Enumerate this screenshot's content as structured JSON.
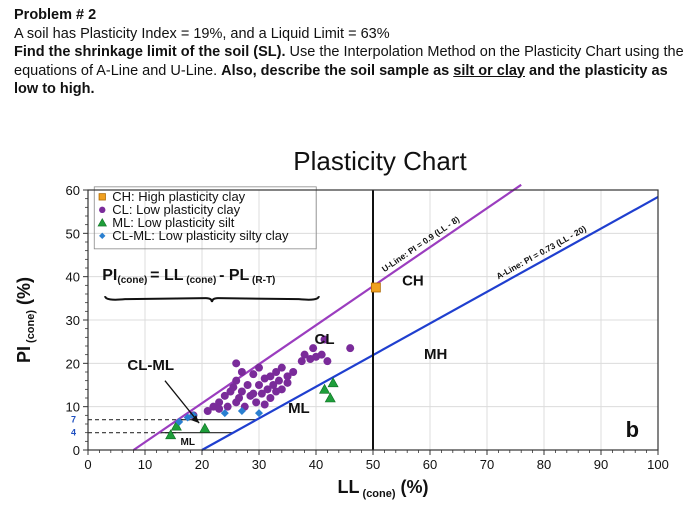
{
  "problem": {
    "title": "Problem # 2",
    "line1": "A soil has Plasticity Index = 19%, and a Liquid Limit = 63%",
    "find_bold": "Find the shrinkage limit of the soil (SL).",
    "find_rest": " Use the Interpolation Method on the Plasticity Chart using the equations of A-Line and U-Line. ",
    "also_bold": "Also, describe the soil sample as ",
    "underlined": "silt or clay",
    "and_bold": " and the plasticity as low to high."
  },
  "chart_data": {
    "type": "scatter",
    "title": "Plasticity Chart",
    "xlabel_main": "LL",
    "xlabel_sub": "(cone)",
    "xlabel_unit": "(%)",
    "ylabel_main": "PI",
    "ylabel_sub": "(cone)",
    "ylabel_unit": "(%)",
    "xlim": [
      0,
      100
    ],
    "ylim": [
      0,
      60
    ],
    "x_ticks": [
      "0",
      "10",
      "20",
      "30",
      "40",
      "50",
      "60",
      "70",
      "80",
      "90",
      "100"
    ],
    "y_ticks": [
      "0",
      "10",
      "20",
      "30",
      "40",
      "50",
      "60"
    ],
    "y_extra_ticks": [
      "4",
      "7"
    ],
    "legend": [
      {
        "marker": "square",
        "color": "#f0a020",
        "label": "CH: High plasticity clay"
      },
      {
        "marker": "circle",
        "color": "#7a2b9a",
        "label": "CL: Low plasticity clay"
      },
      {
        "marker": "triangle",
        "color": "#1e9e3a",
        "label": "ML: Low plasticity silt"
      },
      {
        "marker": "diamond",
        "color": "#2a7fd0",
        "label": "CL-ML: Low plasticity silty clay"
      }
    ],
    "formula": {
      "a": "PI",
      "a_sub": "(cone)",
      "eq": "= LL",
      "b_sub": "(cone)",
      "minus": "- PL",
      "c_sub": "(R-T)"
    },
    "u_line": {
      "label": "U-Line: PI = 0.9 (LL - 8)",
      "slope": 0.9,
      "offset": 8,
      "color": "#9b3dbf"
    },
    "a_line": {
      "label": "A-Line: PI = 0.73 (LL - 20)",
      "slope": 0.73,
      "offset": 20,
      "color": "#1f3fcf"
    },
    "vertical_line_ll": 50,
    "region_labels": [
      {
        "text": "CH",
        "x": 57,
        "y": 38
      },
      {
        "text": "CL",
        "x": 41.5,
        "y": 24.5
      },
      {
        "text": "MH",
        "x": 61,
        "y": 21
      },
      {
        "text": "CL-ML",
        "x": 11,
        "y": 18.5
      },
      {
        "text": "ML",
        "x": 37,
        "y": 8.5
      },
      {
        "text": "ML",
        "x": 17.5,
        "y": 1.2
      },
      {
        "text": "b",
        "x": 95.5,
        "y": 3
      }
    ],
    "series": [
      {
        "name": "CH",
        "marker": "square",
        "color": "#f0a020",
        "points": [
          [
            50.5,
            37.5
          ]
        ]
      },
      {
        "name": "CL",
        "marker": "circle",
        "color": "#7a2b9a",
        "points": [
          [
            18.5,
            8
          ],
          [
            21,
            9
          ],
          [
            22,
            10
          ],
          [
            23,
            9.5
          ],
          [
            23,
            11
          ],
          [
            24,
            12.5
          ],
          [
            24.5,
            10
          ],
          [
            25,
            13.5
          ],
          [
            25.5,
            14.5
          ],
          [
            26,
            11
          ],
          [
            26,
            16
          ],
          [
            26.5,
            12
          ],
          [
            27,
            13.5
          ],
          [
            27,
            18
          ],
          [
            27.5,
            10
          ],
          [
            28,
            15
          ],
          [
            28.5,
            12.5
          ],
          [
            29,
            17.5
          ],
          [
            29,
            13
          ],
          [
            29.5,
            11
          ],
          [
            30,
            15
          ],
          [
            30,
            19
          ],
          [
            30.5,
            13
          ],
          [
            31,
            10.5
          ],
          [
            31,
            16.5
          ],
          [
            31.5,
            14
          ],
          [
            32,
            12
          ],
          [
            32,
            17
          ],
          [
            32.5,
            15
          ],
          [
            33,
            13.5
          ],
          [
            33,
            18
          ],
          [
            33.5,
            16
          ],
          [
            34,
            14
          ],
          [
            34,
            19
          ],
          [
            35,
            15.5
          ],
          [
            35,
            17
          ],
          [
            36,
            18
          ],
          [
            37.5,
            20.5
          ],
          [
            38,
            22
          ],
          [
            39,
            21
          ],
          [
            39.5,
            23.5
          ],
          [
            40,
            21.5
          ],
          [
            41,
            22
          ],
          [
            41.5,
            25.5
          ],
          [
            42,
            20.5
          ],
          [
            46,
            23.5
          ],
          [
            26,
            20
          ]
        ]
      },
      {
        "name": "ML",
        "marker": "triangle",
        "color": "#1e9e3a",
        "points": [
          [
            14.5,
            3.5
          ],
          [
            15.5,
            5.5
          ],
          [
            20.5,
            5
          ],
          [
            41.5,
            14
          ],
          [
            42.5,
            12
          ],
          [
            43,
            15.5
          ]
        ]
      },
      {
        "name": "CL-ML",
        "marker": "diamond",
        "color": "#2a7fd0",
        "points": [
          [
            16,
            6.5
          ],
          [
            17.5,
            7.5
          ],
          [
            18.5,
            8
          ],
          [
            24,
            8.5
          ],
          [
            27,
            9
          ],
          [
            30,
            8.5
          ]
        ]
      }
    ],
    "dashed_guides": [
      4,
      7
    ]
  }
}
